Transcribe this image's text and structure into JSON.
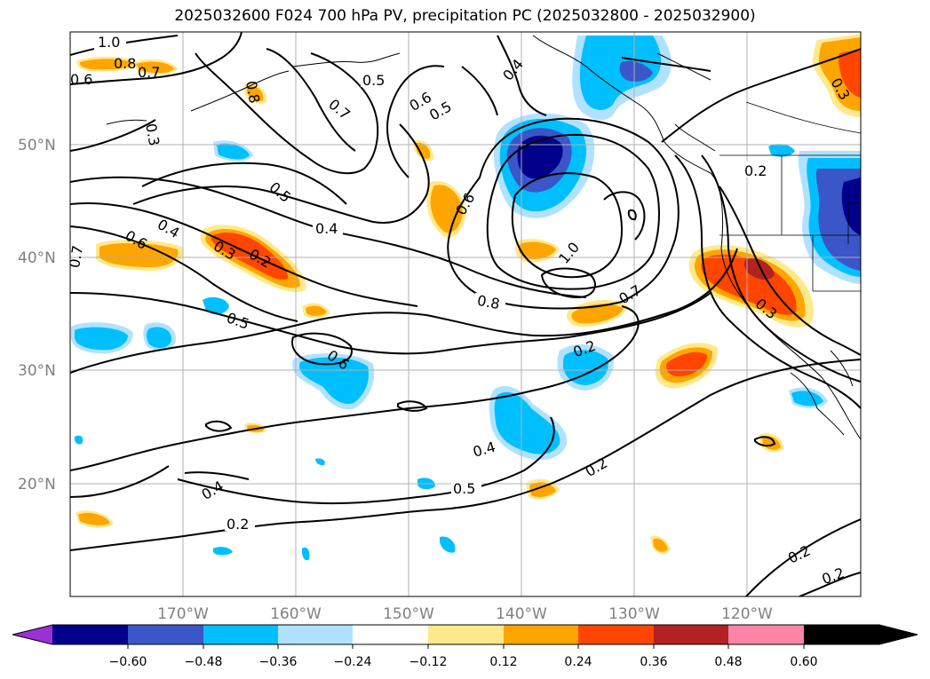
{
  "title": "2025032600 F024 700 hPa PV, precipitation PC (2025032800 - 2025032900)",
  "lat_labels": [
    "50°N",
    "40°N",
    "30°N",
    "20°N"
  ],
  "lon_labels": [
    "170°W",
    "160°W",
    "150°W",
    "140°W",
    "130°W",
    "120°W"
  ],
  "contour_labels": [
    "1.0",
    "0.8",
    "0.7",
    "0.6",
    "0.3",
    "0.8",
    "0.5",
    "0.7",
    "0.6",
    "0.5",
    "0.4",
    "0.5",
    "0.4",
    "0.6",
    "0.4",
    "0.6",
    "0.3",
    "0.2",
    "0.7",
    "0.5",
    "0.6",
    "0.8",
    "1.0",
    "0.7",
    "0.2",
    "0.4",
    "0.5",
    "0.2",
    "0.4",
    "0.2",
    "0.2",
    "0.2",
    "0.3",
    "0.2",
    "0.3"
  ],
  "colorbar": {
    "ticks": [
      "−0.60",
      "−0.48",
      "−0.36",
      "−0.24",
      "−0.12",
      "0.12",
      "0.24",
      "0.36",
      "0.48",
      "0.60"
    ],
    "colors": [
      "#9b30d8",
      "#00008b",
      "#3a56c8",
      "#00bfff",
      "#b0e2ff",
      "#ffffff",
      "#ffe98a",
      "#ffa500",
      "#ff4500",
      "#b22222",
      "#ff85a8"
    ]
  },
  "colors": {
    "grid": "#b0b0b0",
    "contour": "#000000",
    "tick_label": "#808080"
  }
}
